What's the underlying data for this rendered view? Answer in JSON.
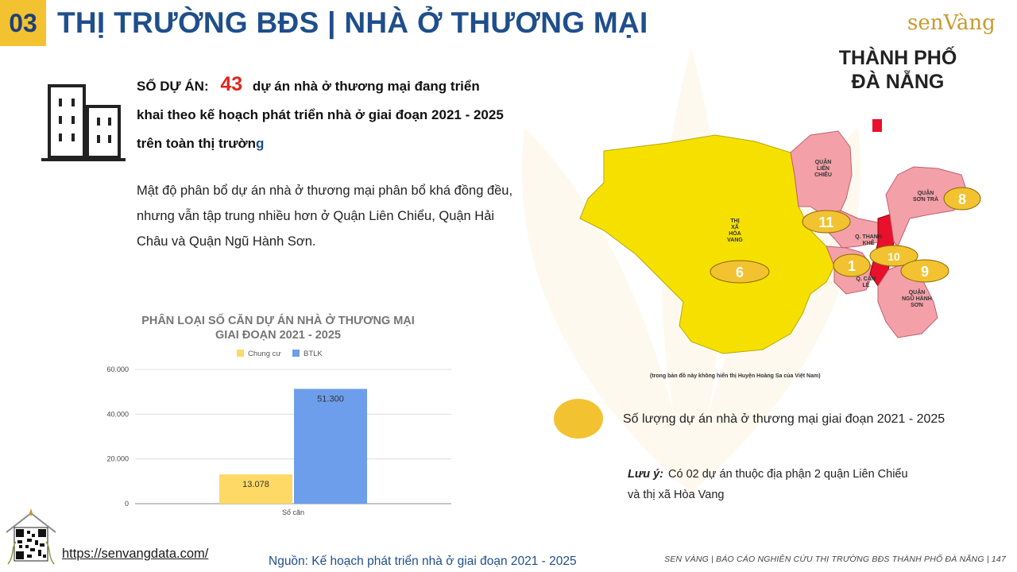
{
  "header": {
    "section_number": "03",
    "title": "THỊ TRƯỜNG BĐS | NHÀ Ở THƯƠNG MẠI",
    "brand": "senVàng",
    "city_title_line1": "THÀNH PHỐ",
    "city_title_line2": "ĐÀ NẴNG"
  },
  "stat": {
    "label": "SỐ DỰ ÁN:",
    "count": "43",
    "text_line1": "dự án nhà ở thương mại đang triển",
    "text_line2": "khai theo kế hoạch phát triển nhà ở giai đoạn 2021 - 2025",
    "text_line3_start": "trên toàn thị trườn",
    "text_line3_end": "g"
  },
  "description": "Mật độ phân bổ dự án nhà ở thương mại phân bổ khá đồng đều, nhưng vẫn tập trung nhiều hơn ở Quận Liên Chiểu, Quận Hải Châu và Quận Ngũ Hành Sơn.",
  "chart_data": {
    "type": "bar",
    "title_line1": "PHÂN LOẠI SỐ CĂN DỰ ÁN NHÀ Ở THƯƠNG MẠI",
    "title_line2": "GIAI ĐOẠN 2021 - 2025",
    "categories": [
      "Số căn"
    ],
    "series": [
      {
        "name": "Chung cư",
        "values": [
          13078
        ],
        "labels": [
          "13.078"
        ],
        "color": "#ffd966"
      },
      {
        "name": "BTLK",
        "values": [
          51300
        ],
        "labels": [
          "51.300"
        ],
        "color": "#6d9eeb"
      }
    ],
    "ylim": [
      0,
      60000
    ],
    "yticks": [
      0,
      20000,
      40000,
      60000
    ],
    "ytick_labels": [
      "0",
      "20.000",
      "40.000",
      "60.000"
    ],
    "legend_position": "top",
    "grid": true
  },
  "map": {
    "districts": {
      "lien_chieu": "QUẬN LIÊN CHIỂU",
      "hoa_vang": "THỊ XÃ HÒA VANG",
      "son_tra": "QUẬN SƠN TRÀ",
      "thanh_khe": "Q. THANH KHÊ",
      "cam_le": "Q. CẨM LỆ",
      "ngu_hanh_son": "QUẬN NGŨ HÀNH SƠN"
    },
    "project_counts": {
      "lien_chieu": "11",
      "son_tra": "8",
      "hoa_vang": "6",
      "cam_le": "1",
      "hai_chau": "10",
      "ngu_hanh_son": "9"
    },
    "note": "(trong bản đồ này không hiển thị Huyện Hoàng Sa của Việt Nam)",
    "colors": {
      "hoa_vang": "#f5e000",
      "districts": "#f4a0a8",
      "hai_chau": "#e8102a",
      "bubble": "#f2c230"
    }
  },
  "legend": {
    "text": "Số lượng dự án nhà ở thương mại giai đoạn 2021 - 2025"
  },
  "note": {
    "label": "Lưu ý:",
    "text_line1": "Có 02 dự án thuộc địa phận 2 quận Liên Chiểu",
    "text_line2": "và thị xã Hòa Vang"
  },
  "footer": {
    "website": "https://senvangdata.com/",
    "source": "Nguồn: Kế hoạch phát triển nhà ở giai đoạn 2021 - 2025",
    "report": "SEN VÀNG | BÁO CÁO NGHIÊN CỨU THỊ TRƯỜNG BĐS THÀNH PHỐ ĐÀ NẴNG | 147"
  }
}
